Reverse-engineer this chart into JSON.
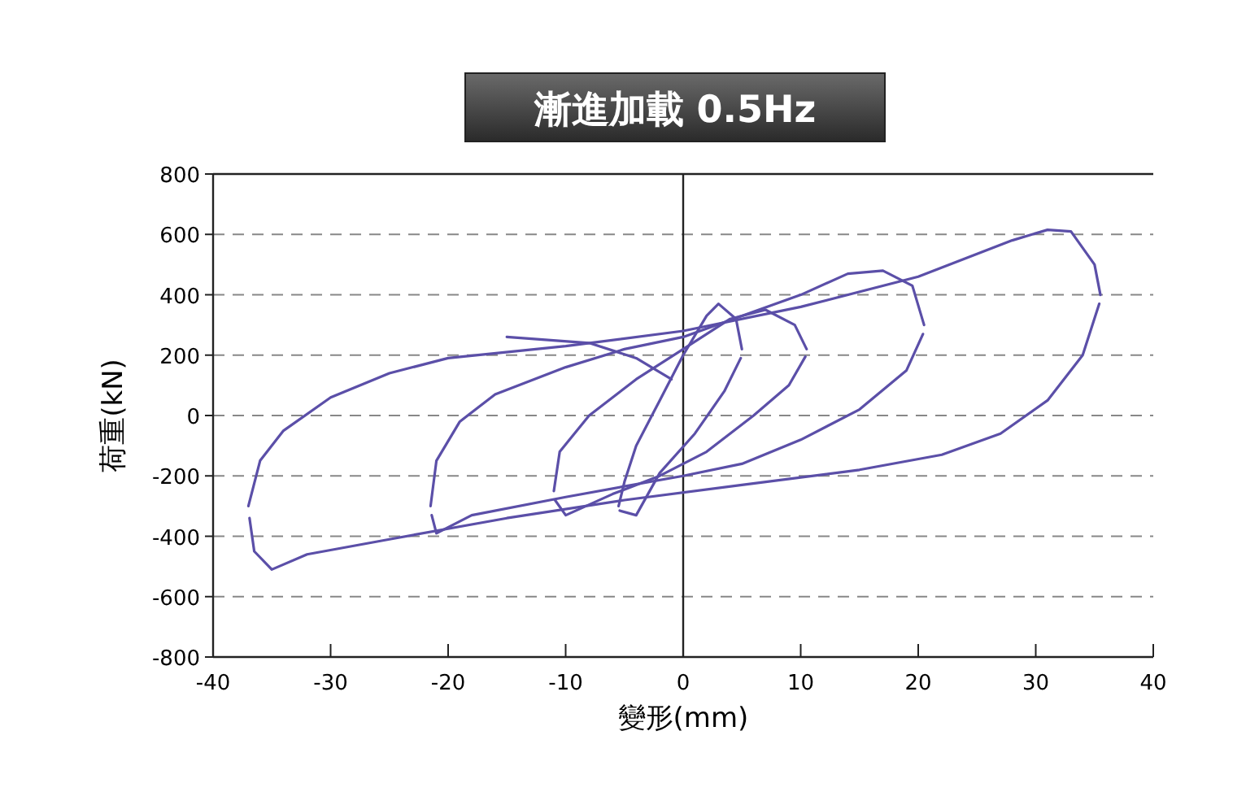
{
  "chart_data": {
    "type": "line",
    "title": "漸進加載 0.5Hz",
    "xlabel": "變形(mm)",
    "ylabel": "荷重(kN)",
    "xlim": [
      -40,
      40
    ],
    "ylim": [
      -800,
      800
    ],
    "xticks": [
      -40,
      -30,
      -20,
      -10,
      0,
      10,
      20,
      30,
      40
    ],
    "yticks": [
      -800,
      -600,
      -400,
      -200,
      0,
      200,
      400,
      600,
      800
    ],
    "grid": "y",
    "marker": "none",
    "line_style": "solid",
    "ref_lines": [
      {
        "axis": "x",
        "value": 0,
        "color": "#222222"
      }
    ],
    "series": [
      {
        "color": "#5b4fa8",
        "x": [
          -37,
          -36,
          -34,
          -30,
          -25,
          -20,
          -10,
          0,
          10,
          20,
          28,
          31,
          33,
          35,
          35.5
        ],
        "values": [
          -300,
          -150,
          -50,
          60,
          140,
          190,
          230,
          280,
          360,
          460,
          580,
          615,
          610,
          500,
          400
        ]
      },
      {
        "color": "#5b4fa8",
        "x": [
          -36.9,
          -36.5,
          -35,
          -32,
          -25,
          -15,
          -5,
          5,
          15,
          22,
          27,
          31,
          34,
          35.4
        ],
        "values": [
          -340,
          -450,
          -510,
          -460,
          -410,
          -340,
          -280,
          -230,
          -180,
          -130,
          -60,
          50,
          200,
          370
        ]
      },
      {
        "color": "#5b4fa8",
        "x": [
          -21.5,
          -21,
          -19,
          -16,
          -10,
          -5,
          0,
          5,
          10,
          14,
          17,
          19.5,
          20.5
        ],
        "values": [
          -300,
          -150,
          -20,
          70,
          160,
          220,
          260,
          330,
          400,
          470,
          480,
          430,
          300
        ]
      },
      {
        "color": "#5b4fa8",
        "x": [
          -21.4,
          -21,
          -18,
          -10,
          0,
          5,
          10,
          15,
          19,
          20.4
        ],
        "values": [
          -330,
          -390,
          -330,
          -270,
          -200,
          -160,
          -80,
          20,
          150,
          270
        ]
      },
      {
        "color": "#5b4fa8",
        "x": [
          -11,
          -10.5,
          -8,
          -4,
          0,
          4,
          7,
          9.5,
          10.5
        ],
        "values": [
          -250,
          -120,
          0,
          120,
          220,
          320,
          350,
          300,
          220
        ]
      },
      {
        "color": "#5b4fa8",
        "x": [
          -10.9,
          -10,
          -6,
          -2,
          2,
          6,
          9,
          10.4
        ],
        "values": [
          -280,
          -330,
          -260,
          -200,
          -120,
          0,
          100,
          195
        ]
      },
      {
        "color": "#5b4fa8",
        "x": [
          -5.5,
          -5,
          -4,
          -2,
          0,
          2,
          3,
          4.5,
          5
        ],
        "values": [
          -300,
          -220,
          -100,
          50,
          200,
          330,
          370,
          320,
          220
        ]
      },
      {
        "color": "#5b4fa8",
        "x": [
          -5.4,
          -4,
          -2,
          1,
          3.5,
          4.9
        ],
        "values": [
          -315,
          -330,
          -190,
          -60,
          80,
          190
        ]
      },
      {
        "color": "#5b4fa8",
        "x": [
          -15,
          -8,
          -4,
          -1
        ],
        "values": [
          260,
          240,
          190,
          120
        ]
      }
    ]
  }
}
